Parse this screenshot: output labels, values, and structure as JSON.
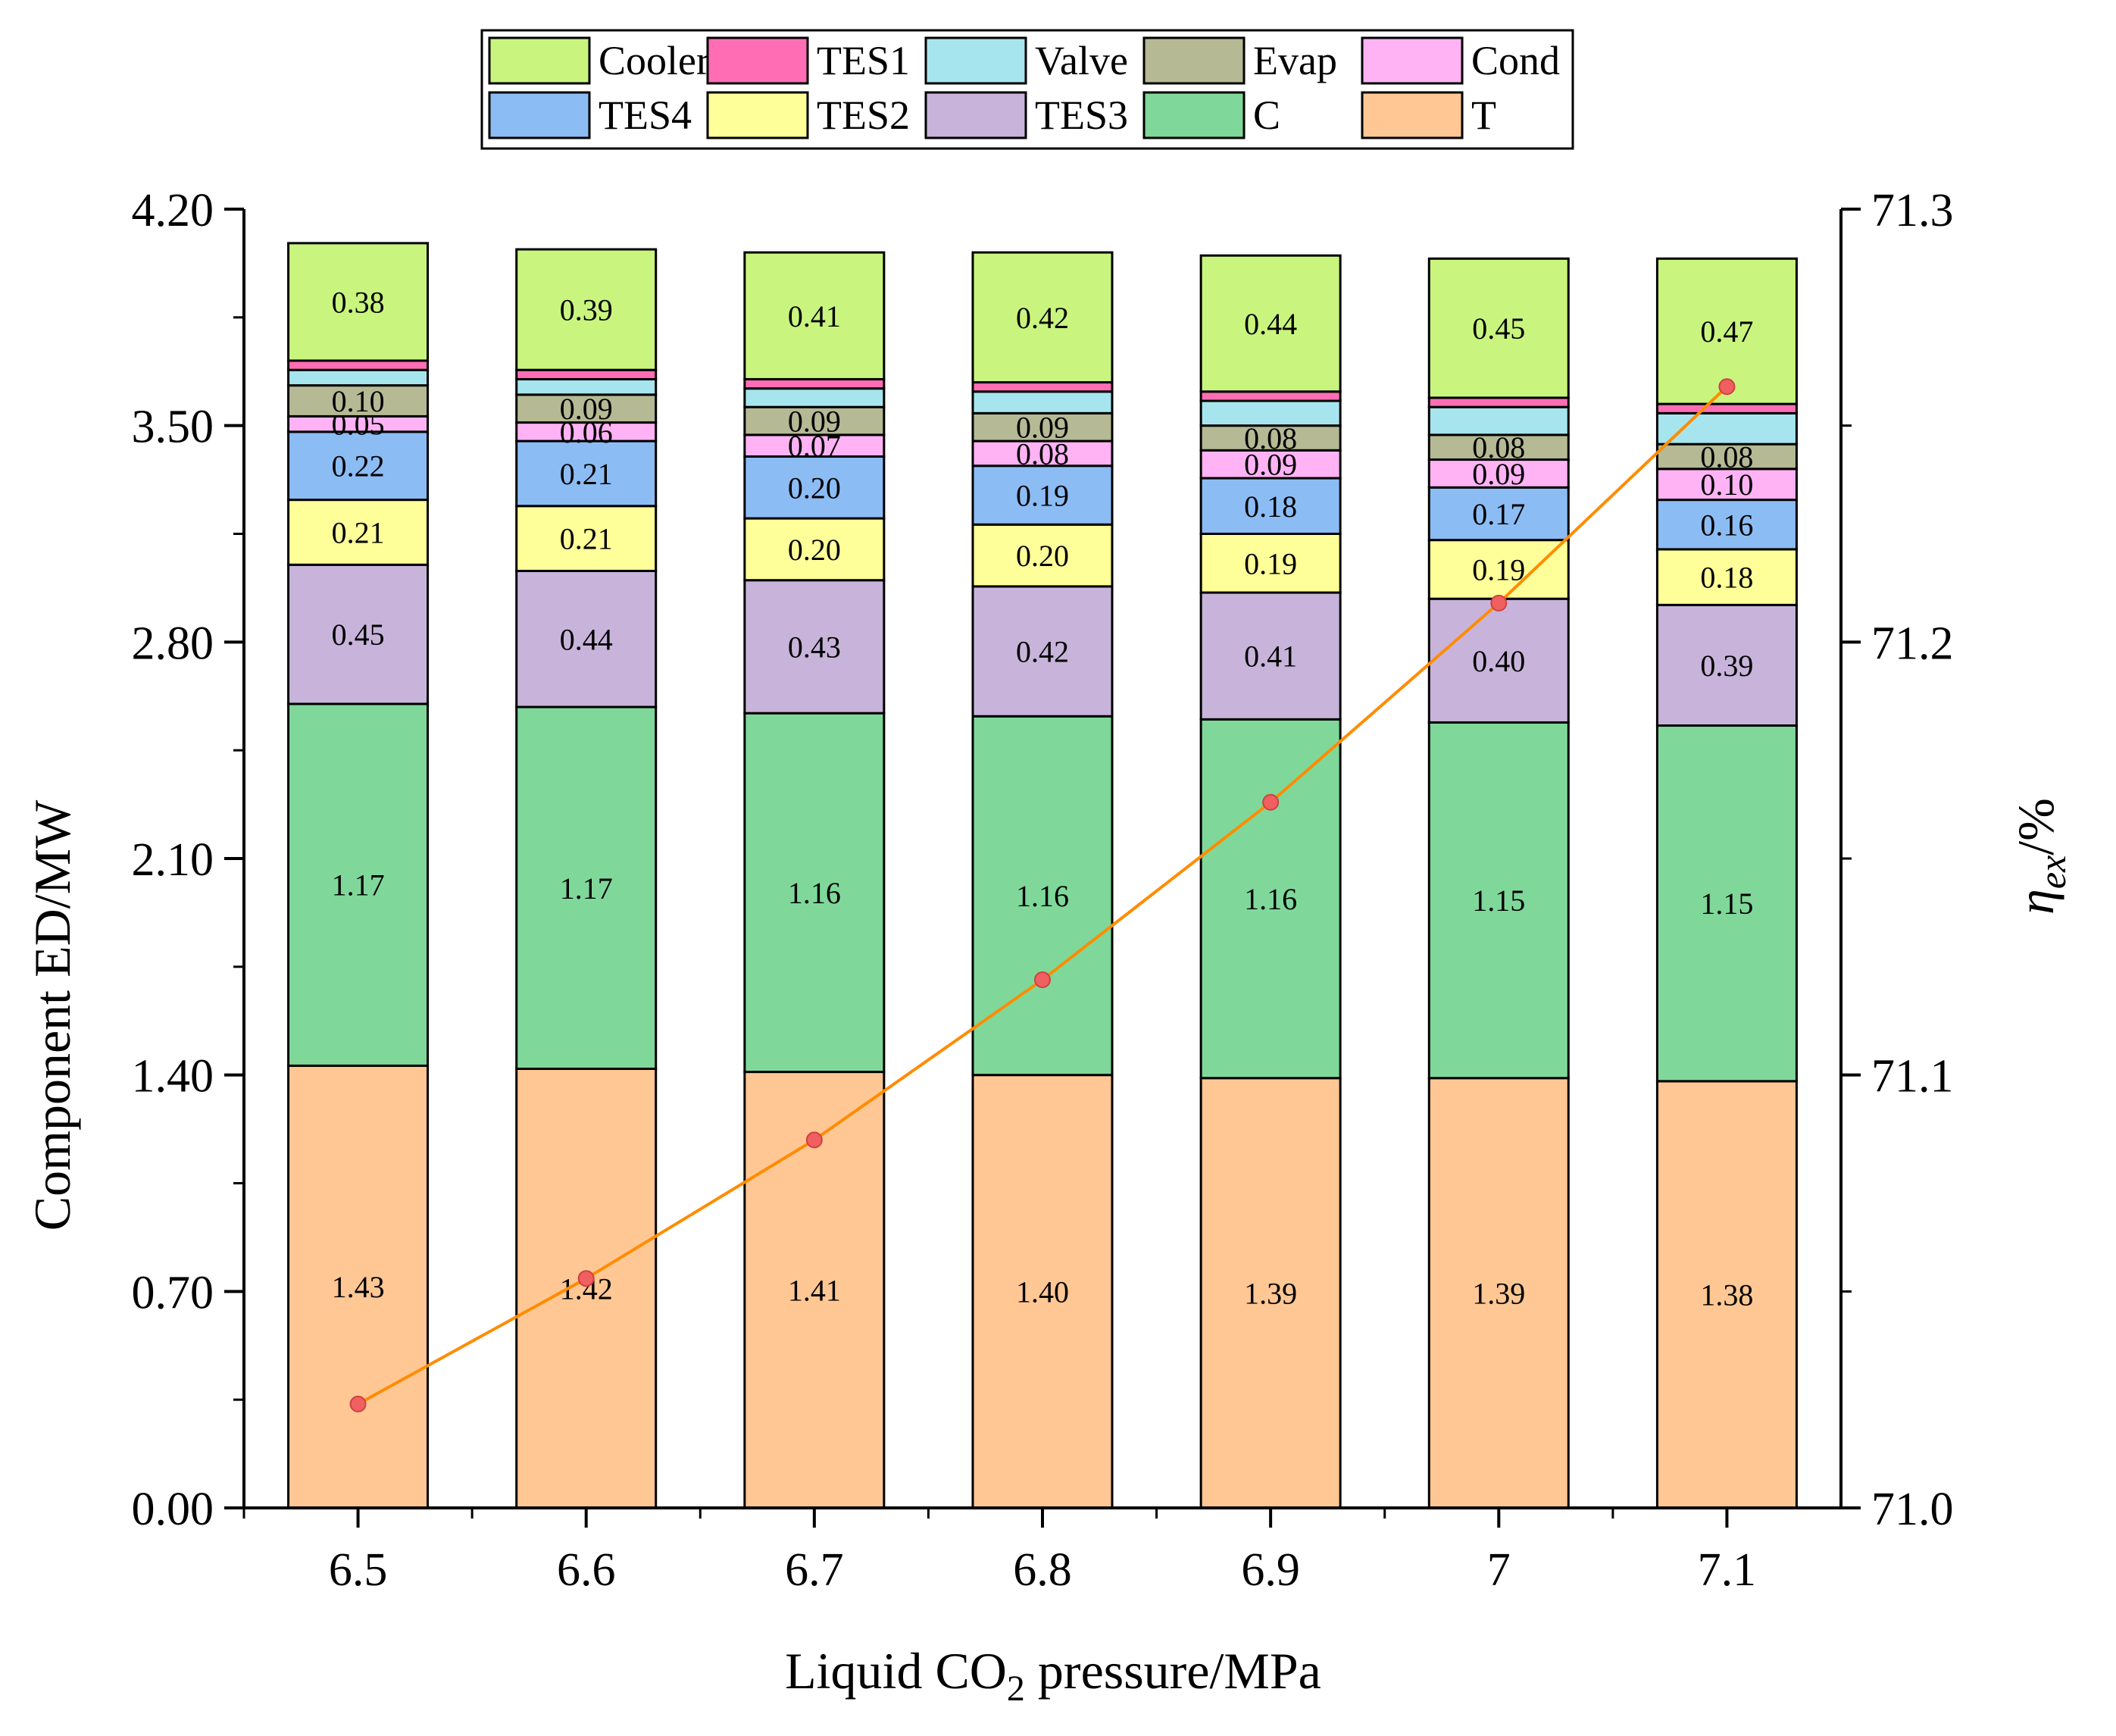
{
  "chart_data": {
    "type": "bar",
    "stacked": true,
    "categories": [
      "6.5",
      "6.6",
      "6.7",
      "6.8",
      "6.9",
      "7",
      "7.1"
    ],
    "xlabel": "Liquid CO2 pressure/MPa",
    "xlabel_parts": {
      "pre": "Liquid CO",
      "sub": "2",
      "post": " pressure/MPa"
    },
    "ylabel": "Component ED/MW",
    "ylim": [
      0,
      4.2
    ],
    "yticks": [
      "0.00",
      "0.70",
      "1.40",
      "2.10",
      "2.80",
      "3.50",
      "4.20"
    ],
    "y2label": "ηex/%",
    "y2label_parts": {
      "main": "η",
      "sub": "ex",
      "post": "/%"
    },
    "y2lim": [
      71.0,
      71.3
    ],
    "y2ticks": [
      "71.0",
      "71.1",
      "71.2",
      "71.3"
    ],
    "series": [
      {
        "name": "T",
        "color": "#FFC794",
        "values": [
          1.43,
          1.42,
          1.41,
          1.4,
          1.39,
          1.39,
          1.38
        ],
        "labels": [
          "1.43",
          "1.42",
          "1.41",
          "1.40",
          "1.39",
          "1.39",
          "1.38"
        ]
      },
      {
        "name": "C",
        "color": "#7FD89A",
        "values": [
          1.17,
          1.17,
          1.16,
          1.16,
          1.16,
          1.15,
          1.15
        ],
        "labels": [
          "1.17",
          "1.17",
          "1.16",
          "1.16",
          "1.16",
          "1.15",
          "1.15"
        ]
      },
      {
        "name": "TES3",
        "color": "#C8B4DA",
        "values": [
          0.45,
          0.44,
          0.43,
          0.42,
          0.41,
          0.4,
          0.39
        ],
        "labels": [
          "0.45",
          "0.44",
          "0.43",
          "0.42",
          "0.41",
          "0.40",
          "0.39"
        ]
      },
      {
        "name": "TES2",
        "color": "#FFFF99",
        "values": [
          0.21,
          0.21,
          0.2,
          0.2,
          0.19,
          0.19,
          0.18
        ],
        "labels": [
          "0.21",
          "0.21",
          "0.20",
          "0.20",
          "0.19",
          "0.19",
          "0.18"
        ]
      },
      {
        "name": "TES4",
        "color": "#8CBCF4",
        "values": [
          0.22,
          0.21,
          0.2,
          0.19,
          0.18,
          0.17,
          0.16
        ],
        "labels": [
          "0.22",
          "0.21",
          "0.20",
          "0.19",
          "0.18",
          "0.17",
          "0.16"
        ]
      },
      {
        "name": "Cond",
        "color": "#FFB3F5",
        "values": [
          0.05,
          0.06,
          0.07,
          0.08,
          0.09,
          0.09,
          0.1
        ],
        "labels": [
          "0.05",
          "0.06",
          "0.07",
          "0.08",
          "0.09",
          "0.09",
          "0.10"
        ]
      },
      {
        "name": "Evap",
        "color": "#B5B994",
        "values": [
          0.1,
          0.09,
          0.09,
          0.09,
          0.08,
          0.08,
          0.08
        ],
        "labels": [
          "0.10",
          "0.09",
          "0.09",
          "0.09",
          "0.08",
          "0.08",
          "0.08"
        ]
      },
      {
        "name": "Valve",
        "color": "#A6E5EE",
        "values": [
          0.05,
          0.05,
          0.06,
          0.07,
          0.08,
          0.09,
          0.1
        ],
        "labels": null
      },
      {
        "name": "TES1",
        "color": "#FF6EB4",
        "values": [
          0.03,
          0.03,
          0.03,
          0.03,
          0.03,
          0.03,
          0.03
        ],
        "labels": null
      },
      {
        "name": "Cooler",
        "color": "#C9F57F",
        "values": [
          0.38,
          0.39,
          0.41,
          0.42,
          0.44,
          0.45,
          0.47
        ],
        "labels": [
          "0.38",
          "0.39",
          "0.41",
          "0.42",
          "0.44",
          "0.45",
          "0.47"
        ]
      }
    ],
    "line": {
      "name": "ηex",
      "axis": "right",
      "color": "#FF8C00",
      "marker_color": "#F06060",
      "values": [
        71.024,
        71.053,
        71.085,
        71.122,
        71.163,
        71.209,
        71.259
      ]
    },
    "legend": {
      "placement": "top-center",
      "rows": [
        [
          "Cooler",
          "TES1",
          "Valve",
          "Evap",
          "Cond"
        ],
        [
          "TES4",
          "TES2",
          "TES3",
          "C",
          "T"
        ]
      ]
    }
  }
}
